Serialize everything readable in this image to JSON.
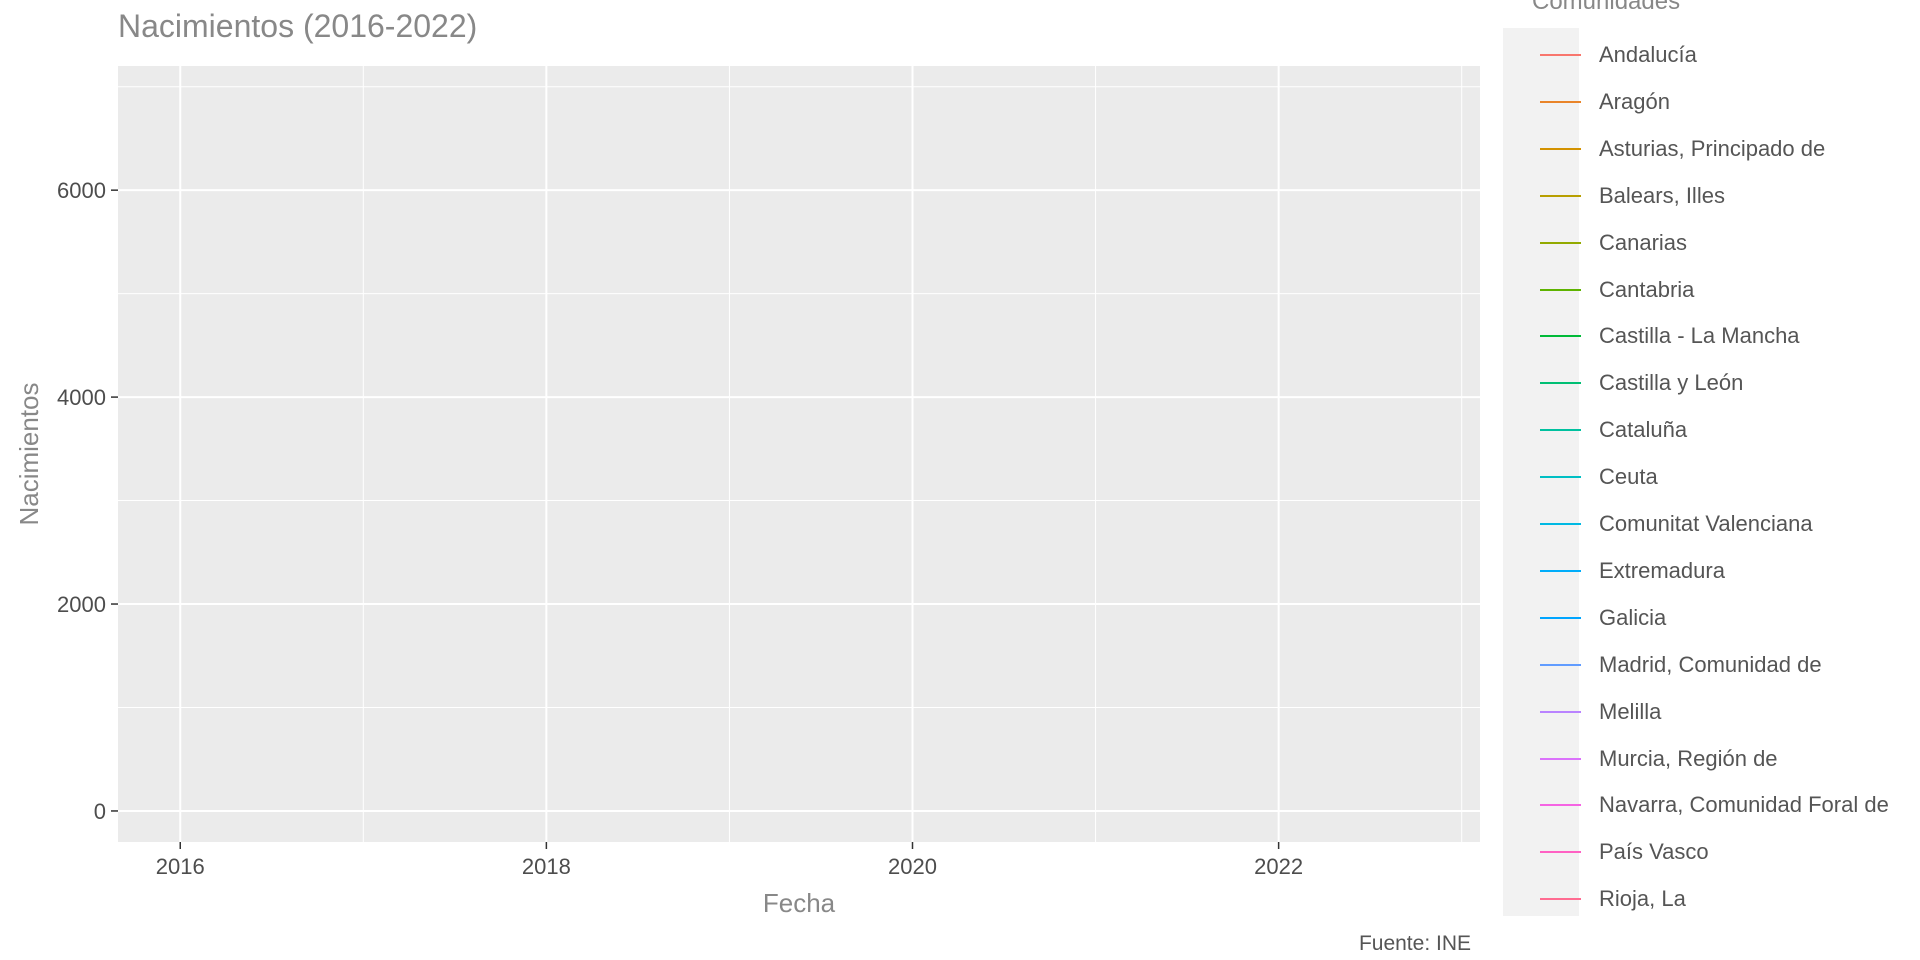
{
  "chart_data": {
    "type": "line",
    "title": "Nacimientos (2016-2022)",
    "xlabel": "Fecha",
    "ylabel": "Nacimientos",
    "caption": "Fuente: INE",
    "xlim": [
      2015.66,
      2023.1
    ],
    "ylim": [
      -300,
      7200
    ],
    "x_ticks": [
      2016,
      2018,
      2020,
      2022
    ],
    "x_minor": [
      2017,
      2019,
      2021,
      2023
    ],
    "y_ticks": [
      0,
      2000,
      4000,
      6000
    ],
    "y_minor": [
      1000,
      3000,
      5000,
      7000
    ],
    "grid": true,
    "legend_title": "Comunidades",
    "legend_position": "right",
    "series": [
      {
        "name": "Andalucía",
        "color": "#F8766D",
        "values": []
      },
      {
        "name": "Aragón",
        "color": "#E98429",
        "values": []
      },
      {
        "name": "Asturias, Principado de",
        "color": "#D39200",
        "values": []
      },
      {
        "name": "Balears, Illes",
        "color": "#B89F00",
        "values": []
      },
      {
        "name": "Canarias",
        "color": "#93AA00",
        "values": []
      },
      {
        "name": "Cantabria",
        "color": "#5EB300",
        "values": []
      },
      {
        "name": "Castilla - La Mancha",
        "color": "#00BA38",
        "values": []
      },
      {
        "name": "Castilla y León",
        "color": "#00BF74",
        "values": []
      },
      {
        "name": "Cataluña",
        "color": "#00C19F",
        "values": []
      },
      {
        "name": "Ceuta",
        "color": "#00BFC4",
        "values": []
      },
      {
        "name": "Comunitat Valenciana",
        "color": "#00B9E3",
        "values": []
      },
      {
        "name": "Extremadura",
        "color": "#00ADFA",
        "values": []
      },
      {
        "name": "Galicia",
        "color": "#00A5FF",
        "values": []
      },
      {
        "name": "Madrid, Comunidad de",
        "color": "#619CFF",
        "values": []
      },
      {
        "name": "Melilla",
        "color": "#B983FF",
        "values": []
      },
      {
        "name": "Murcia, Región de",
        "color": "#DB72FB",
        "values": []
      },
      {
        "name": "Navarra, Comunidad Foral de",
        "color": "#F564E3",
        "values": []
      },
      {
        "name": "País Vasco",
        "color": "#FF61C3",
        "values": []
      },
      {
        "name": "Rioja, La",
        "color": "#FF6C91",
        "values": []
      }
    ]
  }
}
